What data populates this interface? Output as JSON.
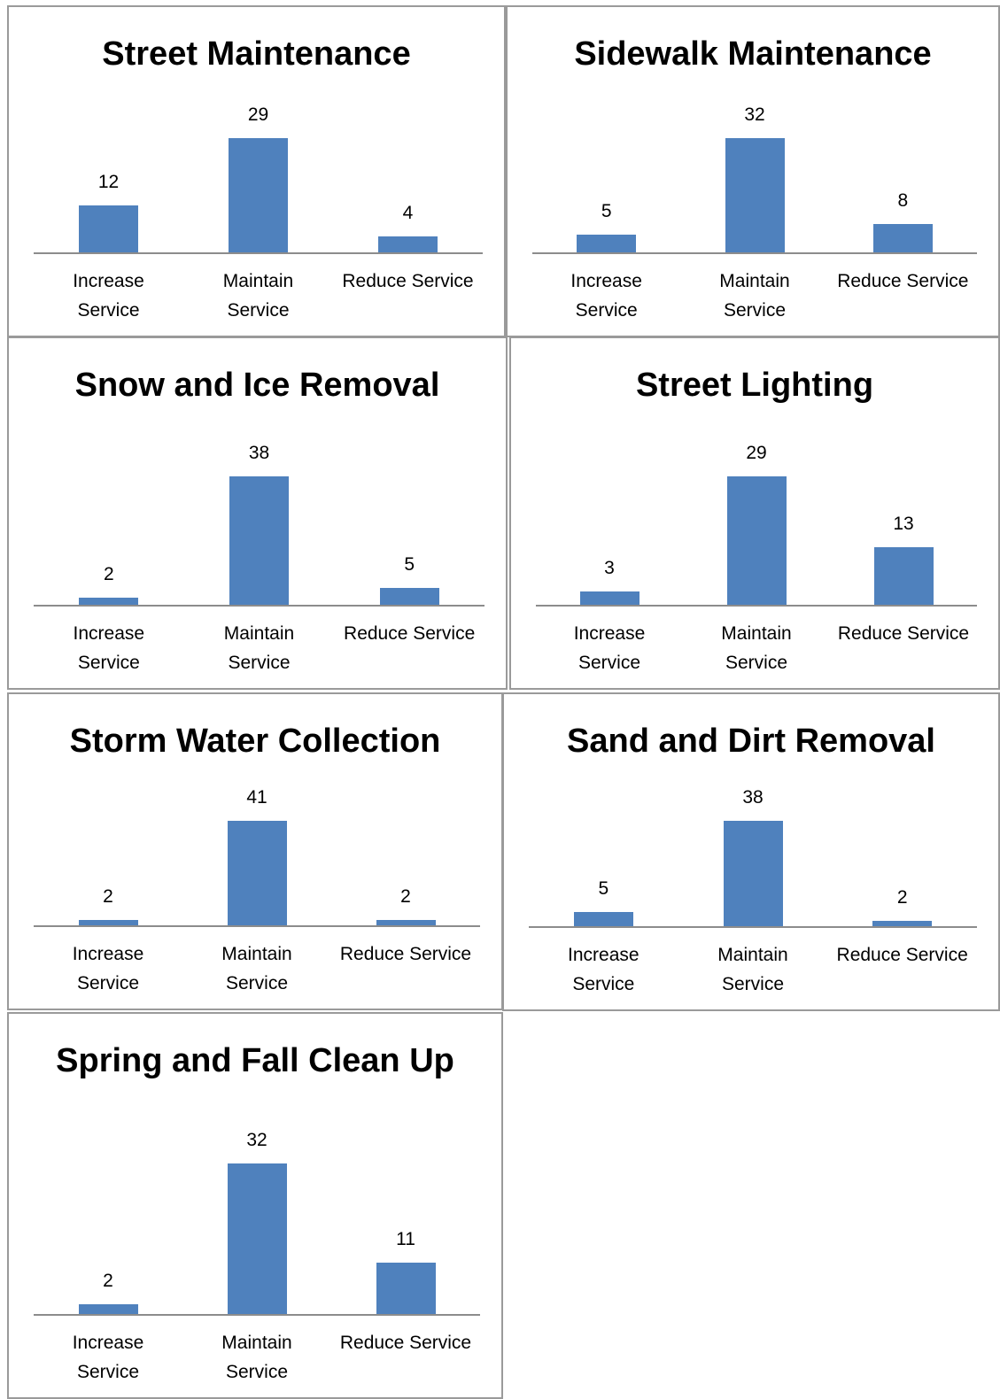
{
  "chart_data": [
    {
      "type": "bar",
      "title": "Street Maintenance",
      "categories": [
        "Increase Service",
        "Maintain Service",
        "Reduce Service"
      ],
      "values": [
        12,
        29,
        4
      ],
      "color": "#4f81bd"
    },
    {
      "type": "bar",
      "title": "Sidewalk Maintenance",
      "categories": [
        "Increase Service",
        "Maintain Service",
        "Reduce Service"
      ],
      "values": [
        5,
        32,
        8
      ],
      "color": "#4f81bd"
    },
    {
      "type": "bar",
      "title": "Snow and Ice Removal",
      "categories": [
        "Increase Service",
        "Maintain Service",
        "Reduce Service"
      ],
      "values": [
        2,
        38,
        5
      ],
      "color": "#4f81bd"
    },
    {
      "type": "bar",
      "title": "Street Lighting",
      "categories": [
        "Increase Service",
        "Maintain Service",
        "Reduce Service"
      ],
      "values": [
        3,
        29,
        13
      ],
      "color": "#4f81bd"
    },
    {
      "type": "bar",
      "title": "Storm Water Collection",
      "categories": [
        "Increase Service",
        "Maintain Service",
        "Reduce Service"
      ],
      "values": [
        2,
        41,
        2
      ],
      "color": "#4f81bd"
    },
    {
      "type": "bar",
      "title": "Sand and Dirt Removal",
      "categories": [
        "Increase Service",
        "Maintain Service",
        "Reduce Service"
      ],
      "values": [
        5,
        38,
        2
      ],
      "color": "#4f81bd"
    },
    {
      "type": "bar",
      "title": "Spring and Fall Clean Up",
      "categories": [
        "Increase Service",
        "Maintain Service",
        "Reduce Service"
      ],
      "values": [
        2,
        32,
        11
      ],
      "color": "#4f81bd"
    }
  ]
}
